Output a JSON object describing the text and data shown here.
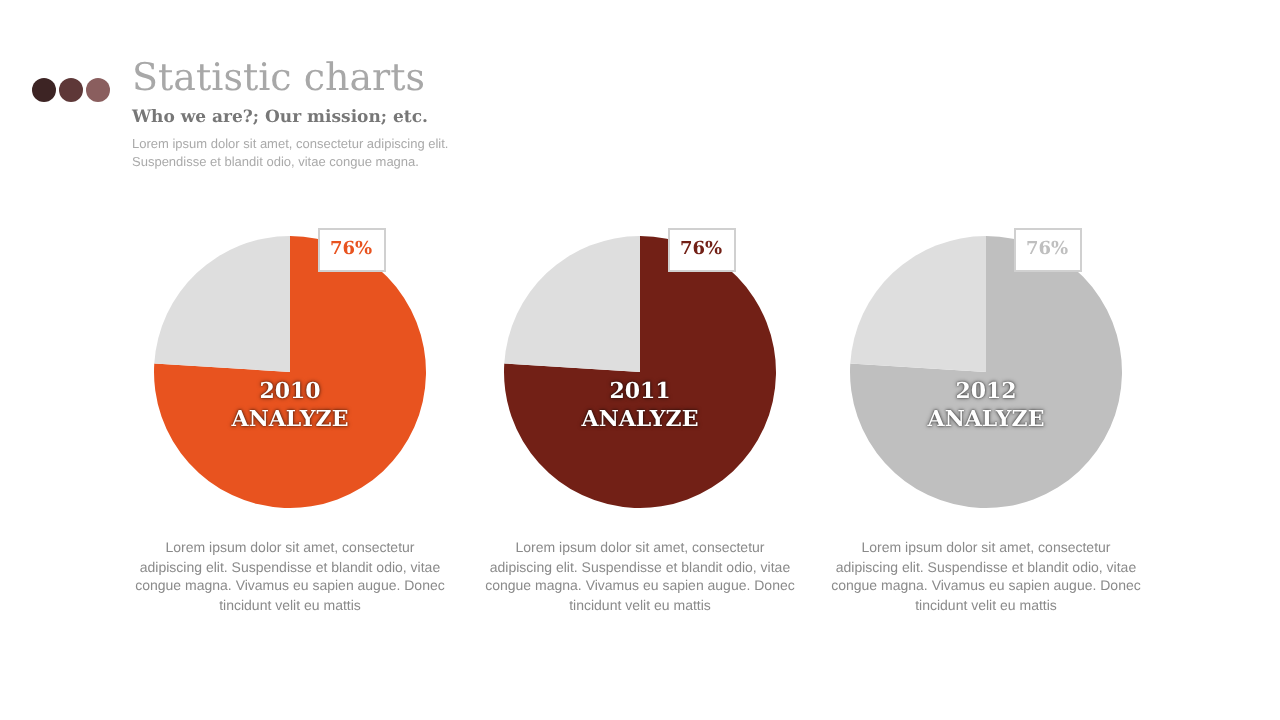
{
  "chart_data": [
    {
      "type": "pie",
      "title": "Statistic charts",
      "subtitle": "Who we are?; Our mission; etc.",
      "categories": [
        null,
        null
      ],
      "values": [
        76,
        24
      ],
      "colors": [
        "#e8531f",
        "#dedede"
      ],
      "value_labels": [
        "76%",
        null
      ],
      "annotations": [
        "2010",
        "ANALYZE",
        "Lorem ipsum dolor sit amet, consectetur adipiscing elit. Suspendisse et blandit odio, vitae congue magna. Vivamus eu sapien augue. Donec tincidunt velit eu mattis",
        "Lorem ipsum dolor sit amet, consectetur adipiscing elit. Suspendisse et blandit odio, vitae congue magna."
      ]
    },
    {
      "type": "pie",
      "categories": [
        null,
        null
      ],
      "values": [
        76,
        24
      ],
      "colors": [
        "#722016",
        "#dedede"
      ],
      "value_labels": [
        "76%",
        null
      ],
      "annotations": [
        "2011",
        "ANALYZE",
        "Lorem ipsum dolor sit amet, consectetur adipiscing elit. Suspendisse et blandit odio, vitae congue magna. Vivamus eu sapien augue. Donec tincidunt velit eu mattis"
      ]
    },
    {
      "type": "pie",
      "categories": [
        null,
        null
      ],
      "values": [
        76,
        24
      ],
      "colors": [
        "#bfbfbf",
        "#dedede"
      ],
      "value_labels": [
        "76%",
        null
      ],
      "annotations": [
        "2012",
        "ANALYZE",
        "Lorem ipsum dolor sit amet, consectetur adipiscing elit. Suspendisse et blandit odio, vitae congue magna. Vivamus eu sapien augue. Donec tincidunt velit eu mattis"
      ]
    }
  ]
}
